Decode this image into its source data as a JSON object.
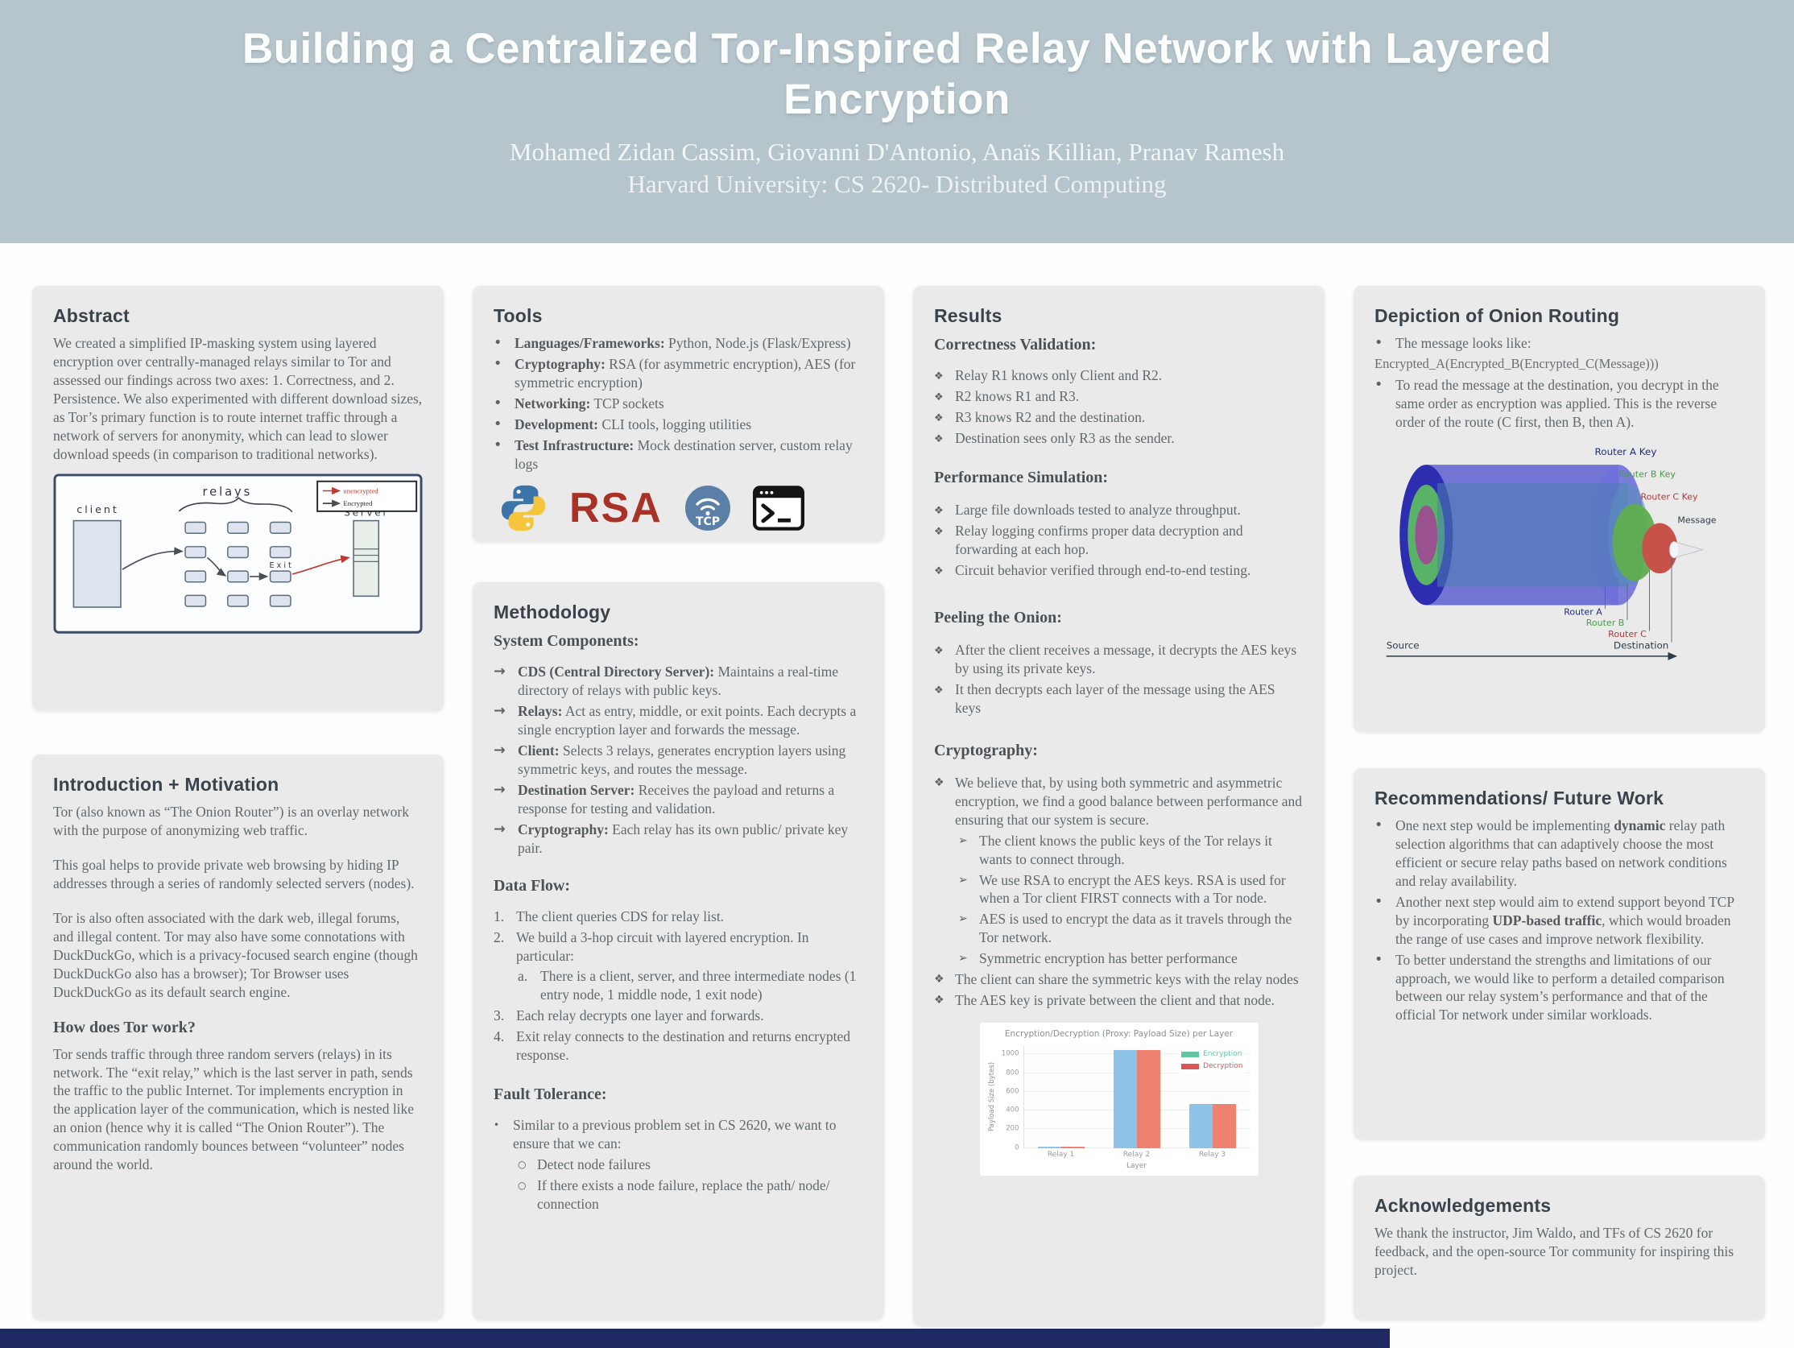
{
  "header": {
    "title": "Building a Centralized Tor-Inspired Relay Network with Layered Encryption",
    "authors": "Mohamed Zidan Cassim, Giovanni D'Antonio, Anaïs Killian, Pranav Ramesh",
    "affiliation": "Harvard University: CS 2620- Distributed Computing"
  },
  "colors": {
    "header_bg": "#b6c5cc",
    "card_bg": "#e9eae9",
    "footer_bar": "#1f2a63",
    "rsa_red": "#a93226",
    "exit_red": "#c0392b",
    "onion_router_a": "#2d2db0",
    "onion_router_b": "#4aa84a",
    "onion_router_c": "#b03a3a"
  },
  "abstract": {
    "heading": "Abstract",
    "body": "We created a simplified IP-masking system using layered encryption over centrally-managed relays similar to Tor and assessed our findings across two axes: 1. Correctness, and 2. Persistence. We also experimented with different download sizes, as Tor’s primary function is to route internet traffic through a network of servers for anonymity, which can lead to slower download speeds (in comparison to traditional networks).",
    "diagram": {
      "client": "client",
      "relays": "relays",
      "exit": "Exit",
      "server": "Server",
      "legend_unencrypted": "unencrypted",
      "legend_encrypted": "Encrypted"
    }
  },
  "intro": {
    "heading": "Introduction + Motivation",
    "p1": "Tor (also known as “The Onion Router”) is an overlay network with the purpose of anonymizing web traffic.",
    "p2": "This goal helps to provide private web browsing by hiding IP addresses through a series of randomly selected servers (nodes).",
    "p3": "Tor is also often associated with the dark web, illegal forums, and illegal content. Tor may also have some connotations with DuckDuckGo, which is a privacy-focused search engine (though DuckDuckGo also has a browser); Tor Browser uses DuckDuckGo as its default search engine.",
    "subheading": "How does Tor work?",
    "how": "Tor sends traffic through three random servers (relays) in its network. The “exit relay,” which is the last server in path, sends the traffic to the public Internet. Tor implements encryption in the application layer of the communication, which is nested like an onion (hence why it is called “The Onion Router”). The communication randomly bounces between “volunteer” nodes around the world."
  },
  "tools": {
    "heading": "Tools",
    "items": [
      {
        "m": "•",
        "label": "Languages/Frameworks:",
        "t": " Python, Node.js (Flask/Express)"
      },
      {
        "m": "•",
        "label": "Cryptography:",
        "t": " RSA (for asymmetric encryption), AES (for symmetric encryption)"
      },
      {
        "m": "•",
        "label": "Networking:",
        "t": " TCP sockets"
      },
      {
        "m": "•",
        "label": "Development:",
        "t": " CLI tools, logging utilities"
      },
      {
        "m": "•",
        "label": "Test Infrastructure:",
        "t": " Mock destination server, custom relay logs"
      }
    ],
    "rsa_text": "RSA",
    "tcp_text": "TCP"
  },
  "methodology": {
    "heading": "Methodology",
    "components_heading": "System Components:",
    "components": [
      {
        "m": "→",
        "label": "CDS (Central Directory Server):",
        "t": " Maintains a real-time directory of relays with public keys."
      },
      {
        "m": "→",
        "label": "Relays:",
        "t": " Act as entry, middle, or exit points. Each decrypts a single encryption layer and forwards the message."
      },
      {
        "m": "→",
        "label": "Client:",
        "t": " Selects 3 relays, generates encryption layers using symmetric keys, and routes the message."
      },
      {
        "m": "→",
        "label": "Destination Server:",
        "t": " Receives the payload and returns a response for testing and validation."
      },
      {
        "m": "→",
        "label": "Cryptography:",
        "t": " Each relay has its own public/ private key pair."
      }
    ],
    "data_flow_heading": "Data Flow:",
    "data_flow": [
      {
        "m": "1.",
        "t": "The client queries CDS for relay list."
      },
      {
        "m": "2.",
        "t": "We build a 3-hop circuit with layered encryption. In particular:"
      },
      {
        "m": "a.",
        "t": "There is a client, server, and three intermediate nodes (1 entry node, 1 middle node, 1 exit node)",
        "indent": 1
      },
      {
        "m": "3.",
        "t": "Each relay decrypts one layer and forwards."
      },
      {
        "m": "4.",
        "t": "Exit relay connects to the destination and returns encrypted response."
      }
    ],
    "fault_heading": "Fault Tolerance:",
    "fault_items": [
      {
        "m": "•",
        "t": "Similar to a previous problem set in CS 2620, we want to ensure that we can:"
      },
      {
        "m": "○",
        "t": "Detect node failures",
        "indent": 1
      },
      {
        "m": "○",
        "t": "If there exists a node failure, replace the path/ node/ connection",
        "indent": 1
      }
    ]
  },
  "results": {
    "heading": "Results",
    "correctness_heading": "Correctness Validation:",
    "correctness": [
      {
        "m": "❖",
        "t": "Relay R1 knows only Client and R2."
      },
      {
        "m": "❖",
        "t": "R2 knows R1 and R3."
      },
      {
        "m": "❖",
        "t": "R3 knows R2 and the destination."
      },
      {
        "m": "❖",
        "t": "Destination sees only R3 as the sender."
      }
    ],
    "performance_heading": "Performance Simulation:",
    "performance": [
      {
        "m": "❖",
        "t": "Large file downloads tested to analyze throughput."
      },
      {
        "m": "❖",
        "t": "Relay logging confirms proper data decryption and forwarding at each hop."
      },
      {
        "m": "❖",
        "t": "Circuit behavior verified through end-to-end testing."
      }
    ],
    "peeling_heading": "Peeling the Onion:",
    "peeling": [
      {
        "m": "❖",
        "t": "After the client receives a message, it decrypts the AES keys by using its private keys."
      },
      {
        "m": "❖",
        "t": "It then decrypts each layer of the message using the AES keys"
      }
    ],
    "crypto_heading": "Cryptography:",
    "crypto": [
      {
        "m": "❖",
        "t": "We believe that, by using both symmetric and asymmetric encryption, we find a good balance between performance and ensuring that our system is secure."
      },
      {
        "m": "➢",
        "t": "The client knows the public keys of the Tor relays it wants to connect through.",
        "indent": 1
      },
      {
        "m": "➢",
        "t": "We use RSA to encrypt the AES keys. RSA is used for when a Tor client FIRST connects with a Tor node.",
        "indent": 1
      },
      {
        "m": "➢",
        "t": "AES is used to encrypt the data as it travels through the Tor network.",
        "indent": 1
      },
      {
        "m": "➢",
        "t": "Symmetric encryption has better performance",
        "indent": 1
      },
      {
        "m": "❖",
        "t": "The client can share the symmetric keys with the relay nodes"
      },
      {
        "m": "❖",
        "t": "The AES key is private between the client and that node."
      }
    ]
  },
  "chart_data": {
    "type": "bar",
    "title": "Encryption/Decryption (Proxy: Payload Size) per Layer",
    "categories": [
      "Relay 1",
      "Relay 2",
      "Relay 3"
    ],
    "series": [
      {
        "name": "Encryption",
        "values": [
          12,
          1050,
          470
        ],
        "color": "#8ec4e8",
        "legend_color": "#63c6a3"
      },
      {
        "name": "Decryption",
        "values": [
          12,
          1050,
          470
        ],
        "color": "#ee8170",
        "legend_color": "#d95757"
      }
    ],
    "xlabel": "Layer",
    "ylabel": "Payload Size (bytes)",
    "yticks": [
      0,
      200,
      400,
      600,
      800,
      1000
    ],
    "ylim": [
      0,
      1100
    ],
    "legend_position": "top-right",
    "grid": true
  },
  "onion": {
    "heading": "Depiction of Onion Routing",
    "bullet_marker": "•",
    "b1": "The message looks like:",
    "formula": "Encrypted_A(Encrypted_B(Encrypted_C(Message)))",
    "b2": "To read the message at the destination, you decrypt in the same order as encryption was applied. This is the reverse order of the route (C first, then B, then A).",
    "key_a": "Router A Key",
    "key_b": "Router B Key",
    "key_c": "Router C Key",
    "message_label": "Message",
    "router_a": "Router A",
    "router_b": "Router B",
    "router_c": "Router C",
    "source": "Source",
    "destination": "Destination"
  },
  "recommendations": {
    "heading": "Recommendations/ Future Work",
    "items": [
      {
        "m": "•",
        "pre": "One next step would be implementing ",
        "b": "dynamic",
        "post": " relay path selection algorithms that can adaptively choose the most efficient or secure relay paths based on network conditions and relay availability."
      },
      {
        "m": "•",
        "pre": "Another next step would aim to extend support beyond TCP by incorporating ",
        "b": "UDP-based traffic",
        "post": ", which would broaden the range of use cases and improve network flexibility."
      },
      {
        "m": "•",
        "pre": "To better understand the strengths and limitations of our approach, we would like to perform a detailed comparison between our relay system’s performance and that of the official Tor network under similar workloads.",
        "b": "",
        "post": ""
      }
    ]
  },
  "acknowledgements": {
    "heading": "Acknowledgements",
    "body": "We thank the instructor, Jim Waldo, and TFs of CS 2620 for feedback, and the open-source Tor community for inspiring this project."
  }
}
